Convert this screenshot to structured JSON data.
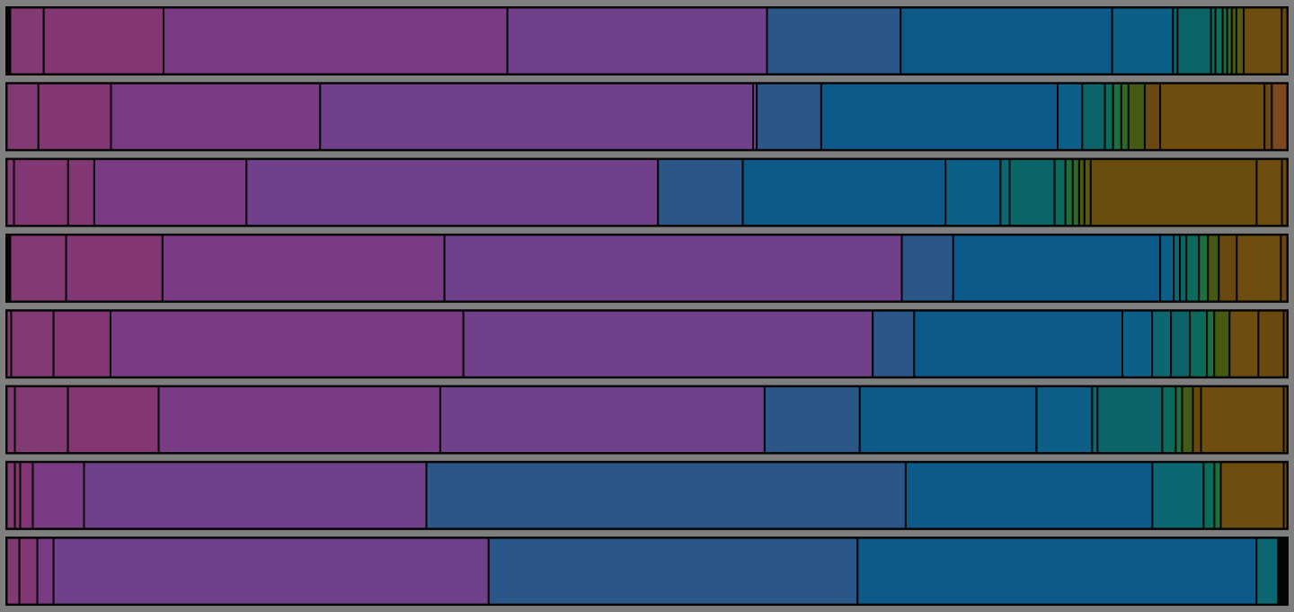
{
  "chart_data": {
    "type": "bar",
    "orientation": "horizontal-stacked",
    "normalized": true,
    "grid": false,
    "legend": "none",
    "title": "",
    "xlabel": "",
    "ylabel": "",
    "xlim": [
      0,
      1
    ],
    "rows": [
      {
        "segments": [
          {
            "value": 0.0028,
            "color": "#050505"
          },
          {
            "value": 0.0261,
            "color": "#823a75"
          },
          {
            "value": 0.0936,
            "color": "#823674"
          },
          {
            "value": 0.2685,
            "color": "#793b84"
          },
          {
            "value": 0.2027,
            "color": "#71408a"
          },
          {
            "value": 0.1044,
            "color": "#2b5788"
          },
          {
            "value": 0.1652,
            "color": "#0b5a8a"
          },
          {
            "value": 0.0475,
            "color": "#0c5f86"
          },
          {
            "value": 0.0035,
            "color": "#0c6772"
          },
          {
            "value": 0.0261,
            "color": "#0b6467"
          },
          {
            "value": 0.0035,
            "color": "#0a6a5c"
          },
          {
            "value": 0.0057,
            "color": "#0b6f59"
          },
          {
            "value": 0.0035,
            "color": "#1e6f40"
          },
          {
            "value": 0.0036,
            "color": "#2d6a25"
          },
          {
            "value": 0.0036,
            "color": "#455a12"
          },
          {
            "value": 0.0057,
            "color": "#5b5711"
          },
          {
            "value": 0.0297,
            "color": "#6e4d0e"
          },
          {
            "value": 0.0043,
            "color": "#6a4810"
          }
        ]
      },
      {
        "segments": [
          {
            "value": 0.0247,
            "color": "#823a75"
          },
          {
            "value": 0.0566,
            "color": "#823674"
          },
          {
            "value": 0.1631,
            "color": "#793b84"
          },
          {
            "value": 0.3376,
            "color": "#71408a"
          },
          {
            "value": 0.0028,
            "color": "#6a4590"
          },
          {
            "value": 0.0503,
            "color": "#2b5788"
          },
          {
            "value": 0.1844,
            "color": "#0b5a8a"
          },
          {
            "value": 0.0191,
            "color": "#0c5f86"
          },
          {
            "value": 0.0177,
            "color": "#0b6467"
          },
          {
            "value": 0.0064,
            "color": "#0a6a5c"
          },
          {
            "value": 0.0064,
            "color": "#1e6f40"
          },
          {
            "value": 0.0056,
            "color": "#2d6a25"
          },
          {
            "value": 0.0127,
            "color": "#455a12"
          },
          {
            "value": 0.012,
            "color": "#6a4810"
          },
          {
            "value": 0.0814,
            "color": "#6e4d0e"
          },
          {
            "value": 0.0057,
            "color": "#6a4810"
          },
          {
            "value": 0.012,
            "color": "#7a4a1e"
          }
        ]
      },
      {
        "segments": [
          {
            "value": 0.0057,
            "color": "#823a75"
          },
          {
            "value": 0.0424,
            "color": "#823674"
          },
          {
            "value": 0.0205,
            "color": "#823674"
          },
          {
            "value": 0.1193,
            "color": "#793b84"
          },
          {
            "value": 0.3225,
            "color": "#71408a"
          },
          {
            "value": 0.0664,
            "color": "#2b5788"
          },
          {
            "value": 0.1589,
            "color": "#0b5a8a"
          },
          {
            "value": 0.0431,
            "color": "#0c5f86"
          },
          {
            "value": 0.0071,
            "color": "#0c6772"
          },
          {
            "value": 0.0353,
            "color": "#0b6467"
          },
          {
            "value": 0.0085,
            "color": "#0a6a5c"
          },
          {
            "value": 0.0057,
            "color": "#1e6f40"
          },
          {
            "value": 0.005,
            "color": "#2d6a25"
          },
          {
            "value": 0.0042,
            "color": "#455a12"
          },
          {
            "value": 0.0049,
            "color": "#5b5711"
          },
          {
            "value": 0.13,
            "color": "#6a4d0c"
          },
          {
            "value": 0.0198,
            "color": "#6e4d0e"
          },
          {
            "value": 0.0042,
            "color": "#6a4810"
          }
        ]
      },
      {
        "segments": [
          {
            "value": 0.0028,
            "color": "#050505"
          },
          {
            "value": 0.0438,
            "color": "#823a75"
          },
          {
            "value": 0.0756,
            "color": "#823674"
          },
          {
            "value": 0.2212,
            "color": "#793b84"
          },
          {
            "value": 0.3588,
            "color": "#71408a"
          },
          {
            "value": 0.0403,
            "color": "#2b5788"
          },
          {
            "value": 0.1624,
            "color": "#0b5a8a"
          },
          {
            "value": 0.0106,
            "color": "#0c5f86"
          },
          {
            "value": 0.0049,
            "color": "#0c6772"
          },
          {
            "value": 0.005,
            "color": "#0b6467"
          },
          {
            "value": 0.0099,
            "color": "#0a6a5c"
          },
          {
            "value": 0.0071,
            "color": "#1e6f40"
          },
          {
            "value": 0.0085,
            "color": "#455a12"
          },
          {
            "value": 0.0141,
            "color": "#6a4810"
          },
          {
            "value": 0.0346,
            "color": "#6e4d0e"
          },
          {
            "value": 0.005,
            "color": "#6a4810"
          }
        ]
      },
      {
        "segments": [
          {
            "value": 0.0035,
            "color": "#823a75"
          },
          {
            "value": 0.0332,
            "color": "#823a75"
          },
          {
            "value": 0.0446,
            "color": "#823674"
          },
          {
            "value": 0.2765,
            "color": "#793b84"
          },
          {
            "value": 0.3207,
            "color": "#71408a"
          },
          {
            "value": 0.0325,
            "color": "#2b5788"
          },
          {
            "value": 0.1631,
            "color": "#0b5a8a"
          },
          {
            "value": 0.0233,
            "color": "#0c5f86"
          },
          {
            "value": 0.0148,
            "color": "#0c6772"
          },
          {
            "value": 0.0148,
            "color": "#0b6467"
          },
          {
            "value": 0.0134,
            "color": "#0a6a5c"
          },
          {
            "value": 0.0057,
            "color": "#1e6f40"
          },
          {
            "value": 0.012,
            "color": "#455a12"
          },
          {
            "value": 0.0226,
            "color": "#6e4d0e"
          },
          {
            "value": 0.0198,
            "color": "#6a4810"
          },
          {
            "value": 0.0028,
            "color": "#6a4810"
          }
        ]
      },
      {
        "segments": [
          {
            "value": 0.0064,
            "color": "#823a75"
          },
          {
            "value": 0.0417,
            "color": "#823a75"
          },
          {
            "value": 0.0714,
            "color": "#823674"
          },
          {
            "value": 0.2214,
            "color": "#793b84"
          },
          {
            "value": 0.2551,
            "color": "#71408a"
          },
          {
            "value": 0.0748,
            "color": "#2b5788"
          },
          {
            "value": 0.139,
            "color": "#0b5a8a"
          },
          {
            "value": 0.0438,
            "color": "#0c5f86"
          },
          {
            "value": 0.0042,
            "color": "#0c6772"
          },
          {
            "value": 0.0509,
            "color": "#0b6467"
          },
          {
            "value": 0.0106,
            "color": "#0a6a5c"
          },
          {
            "value": 0.005,
            "color": "#1e6f40"
          },
          {
            "value": 0.0085,
            "color": "#455a12"
          },
          {
            "value": 0.0064,
            "color": "#6a4810"
          },
          {
            "value": 0.065,
            "color": "#6e4d0e"
          },
          {
            "value": 0.0028,
            "color": "#6a4810"
          }
        ]
      },
      {
        "segments": [
          {
            "value": 0.0064,
            "color": "#823a75"
          },
          {
            "value": 0.0042,
            "color": "#823674"
          },
          {
            "value": 0.0099,
            "color": "#823674"
          },
          {
            "value": 0.0403,
            "color": "#793b84"
          },
          {
            "value": 0.2693,
            "color": "#71408a"
          },
          {
            "value": 0.377,
            "color": "#2b5788"
          },
          {
            "value": 0.194,
            "color": "#0b5a8a"
          },
          {
            "value": 0.0403,
            "color": "#0c6772"
          },
          {
            "value": 0.0085,
            "color": "#0a6a5c"
          },
          {
            "value": 0.005,
            "color": "#1e6f40"
          },
          {
            "value": 0.0495,
            "color": "#6e4d0e"
          },
          {
            "value": 0.0028,
            "color": "#6a4810"
          }
        ]
      },
      {
        "segments": [
          {
            "value": 0.0099,
            "color": "#823a75"
          },
          {
            "value": 0.0141,
            "color": "#823674"
          },
          {
            "value": 0.0127,
            "color": "#793b84"
          },
          {
            "value": 0.3409,
            "color": "#71408a"
          },
          {
            "value": 0.2891,
            "color": "#2b5788"
          },
          {
            "value": 0.3126,
            "color": "#0b5a8a"
          },
          {
            "value": 0.017,
            "color": "#0c6772"
          },
          {
            "value": 0.0071,
            "color": "#050505"
          }
        ]
      }
    ]
  }
}
